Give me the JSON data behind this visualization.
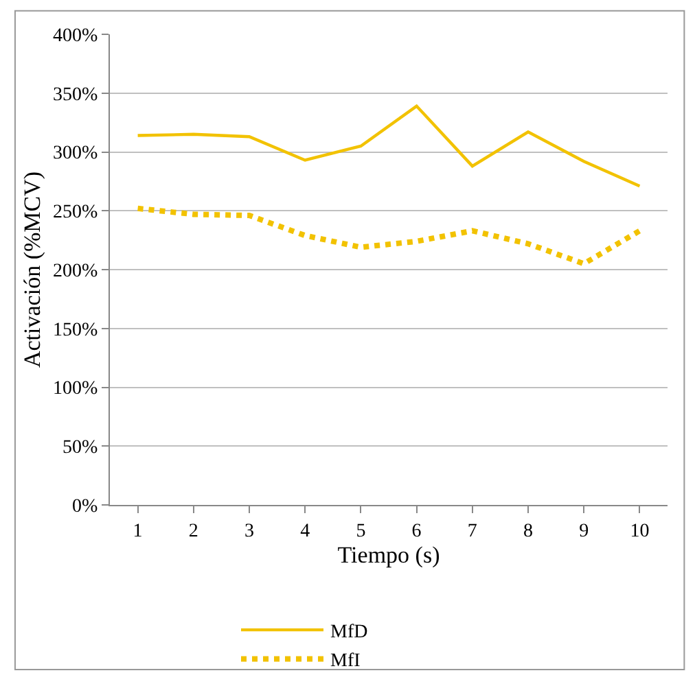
{
  "chart_data": {
    "type": "line",
    "xlabel": "Tiempo (s)",
    "ylabel": "Activación (%MCV)",
    "categories": [
      "1",
      "2",
      "3",
      "4",
      "5",
      "6",
      "7",
      "8",
      "9",
      "10"
    ],
    "series": [
      {
        "name": "MfD",
        "color": "#f2c200",
        "line_style": "solid",
        "values": [
          314,
          315,
          313,
          293,
          305,
          339,
          288,
          317,
          292,
          271
        ]
      },
      {
        "name": "MfI",
        "color": "#f2c200",
        "line_style": "dotted",
        "values": [
          252,
          247,
          246,
          229,
          219,
          224,
          233,
          222,
          205,
          233
        ]
      }
    ],
    "ylim": [
      0,
      400
    ],
    "yticks": [
      {
        "value": 0,
        "label": "0%"
      },
      {
        "value": 50,
        "label": "50%"
      },
      {
        "value": 100,
        "label": "100%"
      },
      {
        "value": 150,
        "label": "150%"
      },
      {
        "value": 200,
        "label": "200%"
      },
      {
        "value": 250,
        "label": "250%"
      },
      {
        "value": 300,
        "label": "300%"
      },
      {
        "value": 350,
        "label": "350%"
      },
      {
        "value": 400,
        "label": "400%"
      }
    ],
    "grid": "y",
    "legend": "bottom",
    "marker": "none"
  }
}
